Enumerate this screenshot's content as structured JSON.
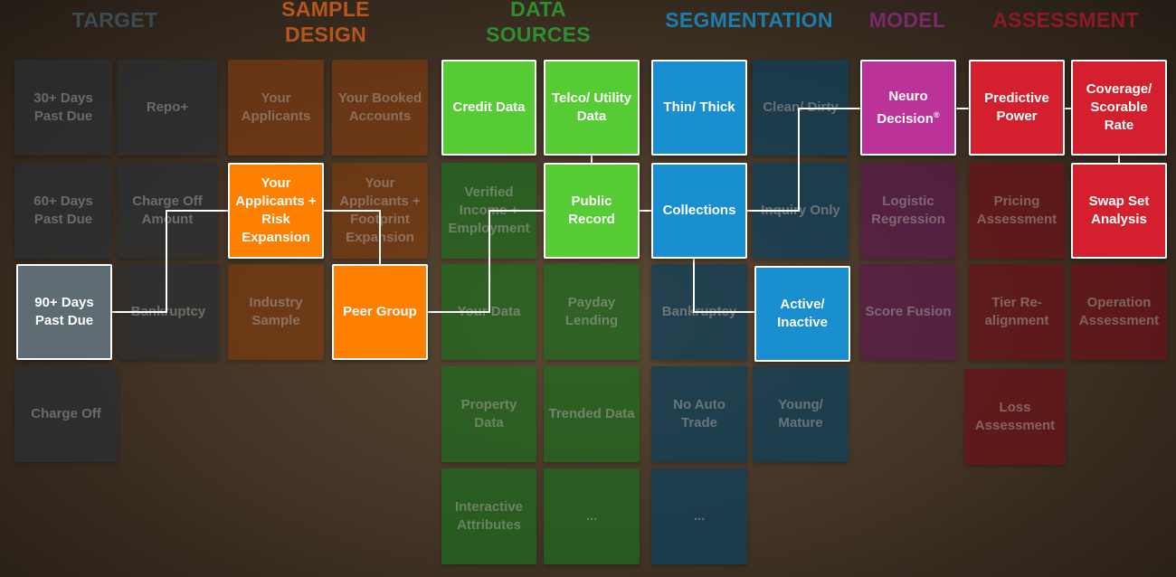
{
  "colors": {
    "target": "#2b2f33",
    "target_hl": "#5f6b73",
    "sample": "#7a3a10",
    "sample_hl": "#ff7f00",
    "data": "#1f6b1f",
    "data_hl": "#55cc33",
    "seg": "#0e3f5a",
    "seg_hl": "#1a8fd0",
    "model": "#5a1a4a",
    "model_hl": "#bb3399",
    "assess": "#6a1218",
    "assess_hl": "#d4202e",
    "connector": "#ffffff"
  },
  "columns": [
    {
      "id": "target",
      "title": "TARGET",
      "color": "#3e4a52"
    },
    {
      "id": "sample",
      "title": "SAMPLE DESIGN",
      "color": "#b8561a"
    },
    {
      "id": "data",
      "title": "DATA SOURCES",
      "color": "#2f8f2f"
    },
    {
      "id": "seg",
      "title": "SEGMENTATION",
      "color": "#1a7fb0"
    },
    {
      "id": "model",
      "title": "MODEL",
      "color": "#7a2a6a"
    },
    {
      "id": "assess",
      "title": "ASSESSMENT",
      "color": "#8c1a24"
    }
  ],
  "tiles": [
    {
      "id": "t1",
      "label": "30+ Days Past Due",
      "group": "target",
      "hl": false
    },
    {
      "id": "t2",
      "label": "Repo+",
      "group": "target",
      "hl": false
    },
    {
      "id": "t3",
      "label": "60+ Days Past Due",
      "group": "target",
      "hl": false
    },
    {
      "id": "t4",
      "label": "Charge Off Amount",
      "group": "target",
      "hl": false
    },
    {
      "id": "t5",
      "label": "90+ Days Past Due",
      "group": "target",
      "hl": true
    },
    {
      "id": "t6",
      "label": "Bankruptcy",
      "group": "target",
      "hl": false
    },
    {
      "id": "t7",
      "label": "Charge Off",
      "group": "target",
      "hl": false
    },
    {
      "id": "s1",
      "label": "Your Applicants",
      "group": "sample",
      "hl": false
    },
    {
      "id": "s2",
      "label": "Your Booked Accounts",
      "group": "sample",
      "hl": false
    },
    {
      "id": "s3",
      "label": "Your Applicants + Risk Expansion",
      "group": "sample",
      "hl": true
    },
    {
      "id": "s4",
      "label": "Your Applicants + Footprint Expansion",
      "group": "sample",
      "hl": false
    },
    {
      "id": "s5",
      "label": "Industry Sample",
      "group": "sample",
      "hl": false
    },
    {
      "id": "s6",
      "label": "Peer Group",
      "group": "sample",
      "hl": true
    },
    {
      "id": "d1",
      "label": "Credit Data",
      "group": "data",
      "hl": true
    },
    {
      "id": "d2",
      "label": "Telco/ Utility Data",
      "group": "data",
      "hl": true
    },
    {
      "id": "d3",
      "label": "Verified Income + Employment",
      "group": "data",
      "hl": false
    },
    {
      "id": "d4",
      "label": "Public Record",
      "group": "data",
      "hl": true
    },
    {
      "id": "d5",
      "label": "Your Data",
      "group": "data",
      "hl": false
    },
    {
      "id": "d6",
      "label": "Payday Lending",
      "group": "data",
      "hl": false
    },
    {
      "id": "d7",
      "label": "Property Data",
      "group": "data",
      "hl": false
    },
    {
      "id": "d8",
      "label": "Trended Data",
      "group": "data",
      "hl": false
    },
    {
      "id": "d9",
      "label": "Interactive Attributes",
      "group": "data",
      "hl": false
    },
    {
      "id": "d10",
      "label": "...",
      "group": "data",
      "hl": false
    },
    {
      "id": "g1",
      "label": "Thin/ Thick",
      "group": "seg",
      "hl": true
    },
    {
      "id": "g2",
      "label": "Clean/ Dirty",
      "group": "seg",
      "hl": false
    },
    {
      "id": "g3",
      "label": "Collections",
      "group": "seg",
      "hl": true
    },
    {
      "id": "g4",
      "label": "Inquiry Only",
      "group": "seg",
      "hl": false
    },
    {
      "id": "g5",
      "label": "Bankruptcy",
      "group": "seg",
      "hl": false
    },
    {
      "id": "g6",
      "label": "Active/ Inactive",
      "group": "seg",
      "hl": true
    },
    {
      "id": "g7",
      "label": "No Auto Trade",
      "group": "seg",
      "hl": false
    },
    {
      "id": "g8",
      "label": "Young/ Mature",
      "group": "seg",
      "hl": false
    },
    {
      "id": "g9",
      "label": "...",
      "group": "seg",
      "hl": false
    },
    {
      "id": "m1",
      "label": "Neuro Decision",
      "sup": "®",
      "group": "model",
      "hl": true
    },
    {
      "id": "m2",
      "label": "Logistic Regression",
      "group": "model",
      "hl": false
    },
    {
      "id": "m3",
      "label": "Score Fusion",
      "group": "model",
      "hl": false
    },
    {
      "id": "a1",
      "label": "Predictive Power",
      "group": "assess",
      "hl": true
    },
    {
      "id": "a2",
      "label": "Coverage/ Scorable Rate",
      "group": "assess",
      "hl": true
    },
    {
      "id": "a3",
      "label": "Pricing Assessment",
      "group": "assess",
      "hl": false
    },
    {
      "id": "a4",
      "label": "Swap Set Analysis",
      "group": "assess",
      "hl": true
    },
    {
      "id": "a5",
      "label": "Tier Re-alignment",
      "group": "assess",
      "hl": false
    },
    {
      "id": "a6",
      "label": "Operation Assessment",
      "group": "assess",
      "hl": false
    },
    {
      "id": "a7",
      "label": "Loss Assessment",
      "group": "assess",
      "hl": false
    }
  ]
}
